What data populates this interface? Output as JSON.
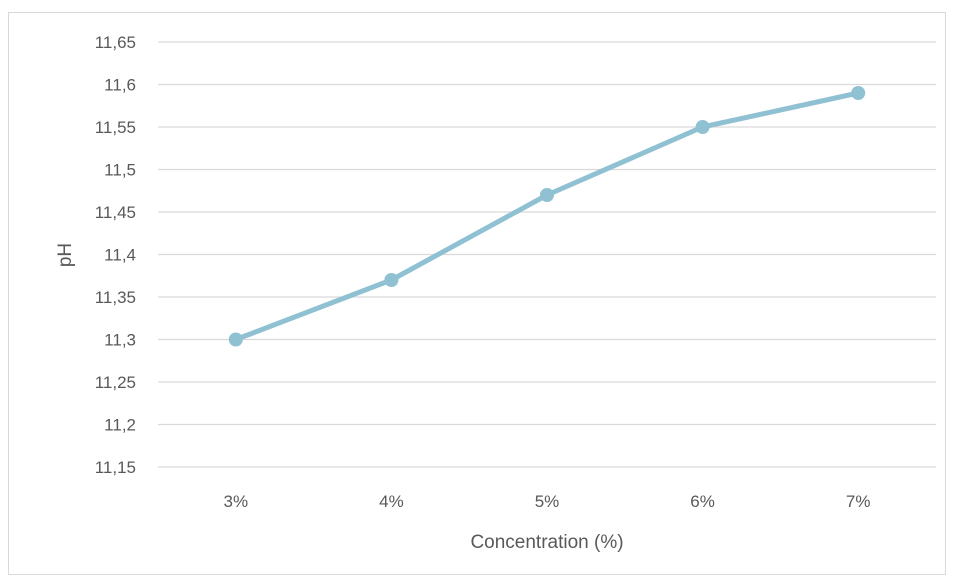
{
  "chart_data": {
    "type": "line",
    "categories": [
      "3%",
      "4%",
      "5%",
      "6%",
      "7%"
    ],
    "series": [
      {
        "values": [
          11.3,
          11.37,
          11.47,
          11.55,
          11.59
        ]
      }
    ],
    "xlabel": "Concentration (%)",
    "ylabel": "pH",
    "ylim": [
      11.15,
      11.65
    ],
    "ytick_values": [
      11.15,
      11.2,
      11.25,
      11.3,
      11.35,
      11.4,
      11.45,
      11.5,
      11.55,
      11.6,
      11.65
    ],
    "ytick_labels": [
      "11,15",
      "11,2",
      "11,25",
      "11,3",
      "11,35",
      "11,4",
      "11,45",
      "11,5",
      "11,55",
      "11,6",
      "11,65"
    ],
    "grid": true,
    "line_color": "#8fc1d3",
    "grid_color": "#d9d9d9"
  }
}
